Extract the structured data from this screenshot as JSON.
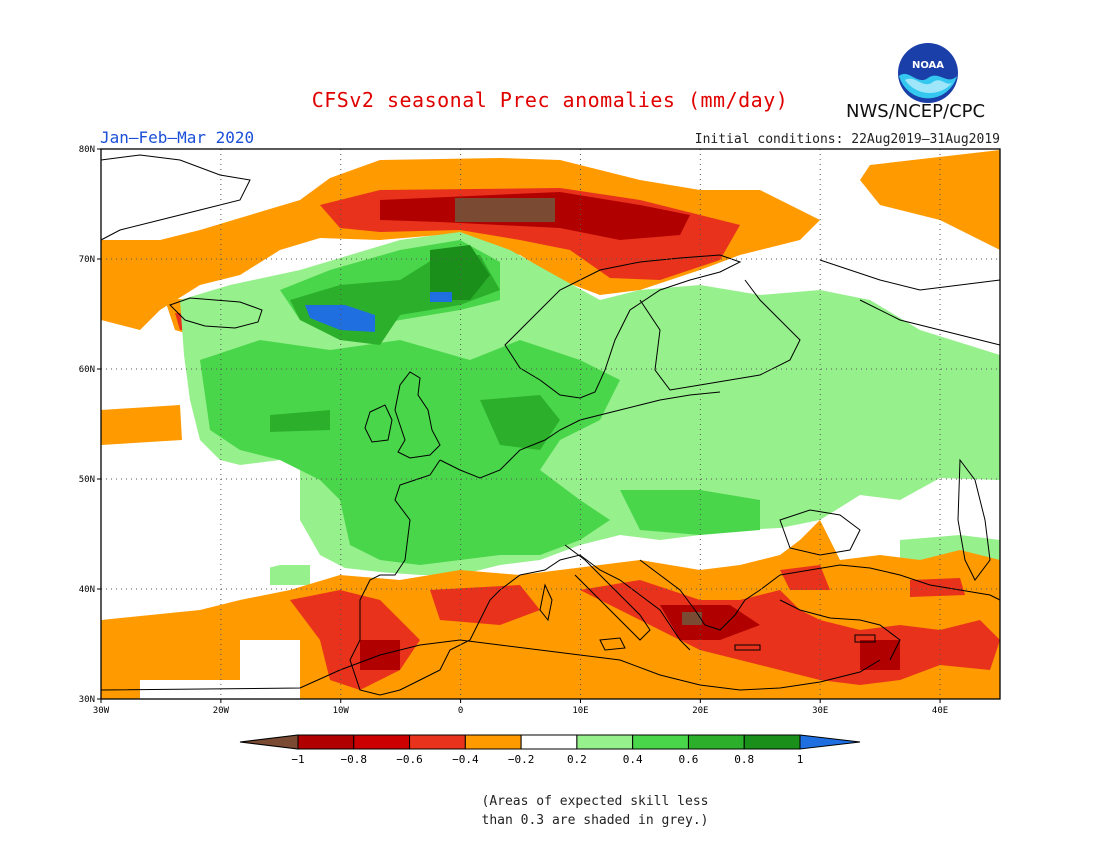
{
  "title": "CFSv2 seasonal Prec anomalies (mm/day)",
  "organization": "NWS/NCEP/CPC",
  "logo_text": "NOAA",
  "period": "Jan–Feb–Mar 2020",
  "initial_conditions": "Initial conditions: 22Aug2019–31Aug2019",
  "lat_ticks": [
    "30N",
    "40N",
    "50N",
    "60N",
    "70N",
    "80N"
  ],
  "lon_ticks": [
    "30W",
    "20W",
    "10W",
    "0",
    "10E",
    "20E",
    "30E",
    "40E"
  ],
  "colorbar_labels": [
    "−1",
    "−0.8",
    "−0.6",
    "−0.4",
    "−0.2",
    "0.2",
    "0.4",
    "0.6",
    "0.8",
    "1"
  ],
  "colors": {
    "dry_extreme": "#7a4a32",
    "dry_1": "#b00000",
    "dry_2": "#e8321c",
    "dry_3": "#ff9a00",
    "neutral": "#ffffff",
    "wet_1": "#96f08c",
    "wet_2": "#4ad64a",
    "wet_3": "#2cb02c",
    "wet_4": "#1a901a",
    "wet_extreme": "#1f6fe0"
  },
  "note_line1": "(Areas of expected skill less",
  "note_line2": "than 0.3 are shaded in grey.)"
}
